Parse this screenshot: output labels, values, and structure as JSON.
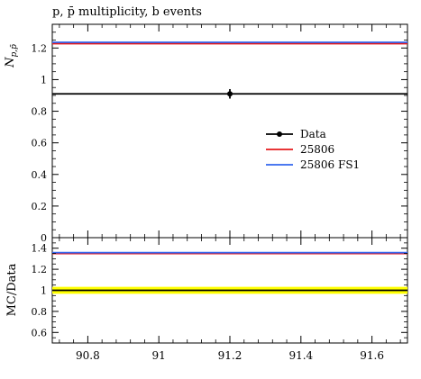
{
  "title": "p, p̄ multiplicity, b events",
  "chart_data": [
    {
      "panel": "main",
      "type": "line",
      "ylabel": "N_{p,p̄}",
      "xlabel": "",
      "xlim": [
        90.7,
        91.7
      ],
      "ylim": [
        0,
        1.35
      ],
      "yticks": [
        0,
        0.2,
        0.4,
        0.6,
        0.8,
        1,
        1.2
      ],
      "ytick_labels": [
        "0",
        "0.2",
        "0.4",
        "0.6",
        "0.8",
        "1",
        "1.2"
      ],
      "data_point": {
        "x": 91.2,
        "y": 0.91,
        "yerr": 0.03,
        "xmin": 90.7,
        "xmax": 91.7
      },
      "series": [
        {
          "name": "Data",
          "color": "#000000",
          "y": 0.91
        },
        {
          "name": "25806",
          "color": "#e41a1c",
          "y": 1.228
        },
        {
          "name": "25806 FS1",
          "color": "#3366ee",
          "y": 1.236
        }
      ],
      "legend": "center-right",
      "grid": false
    },
    {
      "panel": "ratio",
      "type": "line",
      "ylabel": "MC/Data",
      "xlim": [
        90.7,
        91.7
      ],
      "ylim": [
        0.5,
        1.5
      ],
      "xticks": [
        90.8,
        91,
        91.2,
        91.4,
        91.6
      ],
      "xtick_labels": [
        "90.8",
        "91",
        "91.2",
        "91.4",
        "91.6"
      ],
      "yticks": [
        0.6,
        0.8,
        1,
        1.2,
        1.4
      ],
      "ytick_labels": [
        "0.6",
        "0.8",
        "1",
        "1.2",
        "1.4"
      ],
      "band": {
        "center": 1.0,
        "low": 0.967,
        "high": 1.033,
        "color": "#ffff00"
      },
      "series": [
        {
          "name": "25806",
          "color": "#e41a1c",
          "y": 1.35
        },
        {
          "name": "25806 FS1",
          "color": "#3366ee",
          "y": 1.358
        }
      ],
      "grid": false
    }
  ]
}
